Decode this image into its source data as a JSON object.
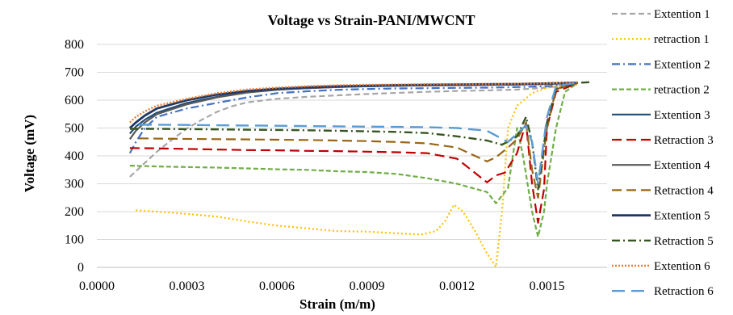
{
  "chart_data": {
    "type": "line",
    "title": "Voltage vs Strain-PANI/MWCNT",
    "xlabel": "Strain (m/m)",
    "ylabel": "Voltage  (mV)",
    "xlim": [
      0.0,
      0.0017
    ],
    "ylim": [
      0,
      800
    ],
    "xticks": [
      "0.0000",
      "0.0003",
      "0.0006",
      "0.0009",
      "0.0012",
      "0.0015"
    ],
    "yticks": [
      "0",
      "100",
      "200",
      "300",
      "400",
      "500",
      "600",
      "700",
      "800"
    ],
    "grid": "horizontal",
    "legend_position": "right",
    "series": [
      {
        "name": "Extention 1",
        "color": "#a6a6a6",
        "dash": "7,4",
        "width": 2.2,
        "points": [
          [
            0.00011,
            325
          ],
          [
            0.00013,
            345
          ],
          [
            0.00016,
            375
          ],
          [
            0.0002,
            415
          ],
          [
            0.00025,
            458
          ],
          [
            0.0003,
            498
          ],
          [
            0.00035,
            530
          ],
          [
            0.0004,
            558
          ],
          [
            0.00045,
            578
          ],
          [
            0.0005,
            592
          ],
          [
            0.0006,
            605
          ],
          [
            0.0007,
            612
          ],
          [
            0.0008,
            617
          ],
          [
            0.0009,
            622
          ],
          [
            0.001,
            626
          ],
          [
            0.0011,
            630
          ],
          [
            0.0012,
            633
          ],
          [
            0.0013,
            635
          ],
          [
            0.0014,
            638
          ],
          [
            0.0015,
            645
          ],
          [
            0.0016,
            660
          ]
        ]
      },
      {
        "name": "retraction 1",
        "color": "#ffc000",
        "dash": "2,3",
        "width": 2.2,
        "points": [
          [
            0.00013,
            205
          ],
          [
            0.0002,
            200
          ],
          [
            0.0003,
            192
          ],
          [
            0.0004,
            182
          ],
          [
            0.0005,
            165
          ],
          [
            0.0006,
            150
          ],
          [
            0.0007,
            140
          ],
          [
            0.0008,
            130
          ],
          [
            0.0009,
            128
          ],
          [
            0.001,
            122
          ],
          [
            0.00108,
            118
          ],
          [
            0.00113,
            130
          ],
          [
            0.00116,
            165
          ],
          [
            0.00119,
            225
          ],
          [
            0.00122,
            200
          ],
          [
            0.00126,
            130
          ],
          [
            0.0013,
            50
          ],
          [
            0.00133,
            2
          ],
          [
            0.00135,
            200
          ],
          [
            0.00137,
            500
          ],
          [
            0.0014,
            580
          ],
          [
            0.00145,
            625
          ],
          [
            0.0015,
            645
          ],
          [
            0.0016,
            655
          ]
        ]
      },
      {
        "name": "Extention 2",
        "color": "#4472c4",
        "dash": "10,4,2,4",
        "width": 2.2,
        "points": [
          [
            0.00011,
            410
          ],
          [
            0.00013,
            450
          ],
          [
            0.00016,
            500
          ],
          [
            0.0002,
            540
          ],
          [
            0.0003,
            570
          ],
          [
            0.0004,
            590
          ],
          [
            0.0005,
            610
          ],
          [
            0.0006,
            625
          ],
          [
            0.0007,
            632
          ],
          [
            0.0008,
            637
          ],
          [
            0.0009,
            640
          ],
          [
            0.001,
            642
          ],
          [
            0.0011,
            643
          ],
          [
            0.0012,
            644
          ],
          [
            0.0013,
            645
          ],
          [
            0.0014,
            647
          ],
          [
            0.0015,
            650
          ],
          [
            0.0016,
            660
          ]
        ]
      },
      {
        "name": "retraction 2",
        "color": "#70ad47",
        "dash": "6,3",
        "width": 2.2,
        "points": [
          [
            0.00011,
            365
          ],
          [
            0.0002,
            362
          ],
          [
            0.0003,
            360
          ],
          [
            0.0004,
            358
          ],
          [
            0.0005,
            355
          ],
          [
            0.0006,
            352
          ],
          [
            0.0007,
            350
          ],
          [
            0.0008,
            345
          ],
          [
            0.0009,
            342
          ],
          [
            0.001,
            335
          ],
          [
            0.0011,
            320
          ],
          [
            0.0012,
            300
          ],
          [
            0.0013,
            270
          ],
          [
            0.00133,
            230
          ],
          [
            0.00137,
            285
          ],
          [
            0.0014,
            500
          ],
          [
            0.00142,
            400
          ],
          [
            0.00145,
            200
          ],
          [
            0.00147,
            110
          ],
          [
            0.00149,
            200
          ],
          [
            0.0015,
            300
          ],
          [
            0.00153,
            500
          ],
          [
            0.00156,
            630
          ],
          [
            0.0016,
            660
          ]
        ]
      },
      {
        "name": "Extention 3",
        "color": "#1f4e79",
        "dash": "",
        "width": 2.2,
        "points": [
          [
            0.00011,
            480
          ],
          [
            0.00013,
            505
          ],
          [
            0.00016,
            530
          ],
          [
            0.0002,
            555
          ],
          [
            0.0003,
            590
          ],
          [
            0.0004,
            612
          ],
          [
            0.0005,
            628
          ],
          [
            0.0006,
            638
          ],
          [
            0.0007,
            643
          ],
          [
            0.0008,
            647
          ],
          [
            0.0009,
            650
          ],
          [
            0.001,
            652
          ],
          [
            0.0011,
            653
          ],
          [
            0.0012,
            654
          ],
          [
            0.0013,
            655
          ],
          [
            0.0014,
            656
          ],
          [
            0.0015,
            658
          ],
          [
            0.0016,
            662
          ]
        ]
      },
      {
        "name": "Retraction 3",
        "color": "#c00000",
        "dash": "12,6",
        "width": 2.2,
        "points": [
          [
            0.00011,
            428
          ],
          [
            0.0002,
            427
          ],
          [
            0.0003,
            425
          ],
          [
            0.0004,
            423
          ],
          [
            0.0005,
            421
          ],
          [
            0.0006,
            420
          ],
          [
            0.0007,
            418
          ],
          [
            0.0008,
            417
          ],
          [
            0.0009,
            415
          ],
          [
            0.001,
            413
          ],
          [
            0.0011,
            410
          ],
          [
            0.0012,
            390
          ],
          [
            0.0013,
            305
          ],
          [
            0.00133,
            330
          ],
          [
            0.00136,
            340
          ],
          [
            0.0014,
            410
          ],
          [
            0.00143,
            520
          ],
          [
            0.00145,
            300
          ],
          [
            0.00147,
            160
          ],
          [
            0.00149,
            280
          ],
          [
            0.0015,
            500
          ],
          [
            0.00153,
            630
          ],
          [
            0.0016,
            660
          ]
        ]
      },
      {
        "name": "Extention 4",
        "color": "#595959",
        "dash": "",
        "width": 2.2,
        "points": [
          [
            0.00011,
            460
          ],
          [
            0.00013,
            490
          ],
          [
            0.00016,
            520
          ],
          [
            0.0002,
            550
          ],
          [
            0.0003,
            585
          ],
          [
            0.0004,
            610
          ],
          [
            0.0005,
            627
          ],
          [
            0.0006,
            637
          ],
          [
            0.0007,
            643
          ],
          [
            0.0008,
            647
          ],
          [
            0.0009,
            650
          ],
          [
            0.001,
            652
          ],
          [
            0.0011,
            653
          ],
          [
            0.0012,
            654
          ],
          [
            0.0013,
            655
          ],
          [
            0.0014,
            656
          ],
          [
            0.0015,
            658
          ],
          [
            0.0016,
            662
          ]
        ]
      },
      {
        "name": "Retraction 4",
        "color": "#996515",
        "dash": "12,6",
        "width": 2.2,
        "points": [
          [
            0.00014,
            463
          ],
          [
            0.0002,
            462
          ],
          [
            0.0003,
            461
          ],
          [
            0.0004,
            460
          ],
          [
            0.0005,
            459
          ],
          [
            0.0006,
            458
          ],
          [
            0.0007,
            457
          ],
          [
            0.0008,
            455
          ],
          [
            0.0009,
            453
          ],
          [
            0.001,
            450
          ],
          [
            0.0011,
            445
          ],
          [
            0.0012,
            430
          ],
          [
            0.0013,
            380
          ],
          [
            0.00133,
            395
          ],
          [
            0.00137,
            430
          ],
          [
            0.0014,
            460
          ],
          [
            0.00143,
            520
          ],
          [
            0.00145,
            350
          ],
          [
            0.00147,
            250
          ],
          [
            0.0015,
            500
          ],
          [
            0.00153,
            640
          ],
          [
            0.0016,
            660
          ]
        ]
      },
      {
        "name": "Extention 5",
        "color": "#203864",
        "dash": "",
        "width": 2.8,
        "points": [
          [
            0.00011,
            500
          ],
          [
            0.00013,
            520
          ],
          [
            0.00016,
            545
          ],
          [
            0.0002,
            570
          ],
          [
            0.0003,
            600
          ],
          [
            0.0004,
            620
          ],
          [
            0.0005,
            633
          ],
          [
            0.0006,
            641
          ],
          [
            0.0007,
            646
          ],
          [
            0.0008,
            650
          ],
          [
            0.0009,
            652
          ],
          [
            0.001,
            654
          ],
          [
            0.0011,
            655
          ],
          [
            0.0012,
            656
          ],
          [
            0.0013,
            657
          ],
          [
            0.0014,
            658
          ],
          [
            0.0015,
            660
          ],
          [
            0.0016,
            663
          ]
        ]
      },
      {
        "name": "Retraction 5",
        "color": "#375623",
        "dash": "10,4,2,4",
        "width": 2.4,
        "points": [
          [
            0.00011,
            497
          ],
          [
            0.0002,
            497
          ],
          [
            0.0003,
            496
          ],
          [
            0.0004,
            495
          ],
          [
            0.0005,
            494
          ],
          [
            0.0006,
            493
          ],
          [
            0.0007,
            492
          ],
          [
            0.0008,
            490
          ],
          [
            0.0009,
            488
          ],
          [
            0.001,
            486
          ],
          [
            0.0011,
            482
          ],
          [
            0.0012,
            470
          ],
          [
            0.0013,
            455
          ],
          [
            0.00135,
            440
          ],
          [
            0.0014,
            470
          ],
          [
            0.00143,
            540
          ],
          [
            0.00145,
            450
          ],
          [
            0.00147,
            280
          ],
          [
            0.0015,
            520
          ],
          [
            0.00153,
            640
          ],
          [
            0.0016,
            662
          ],
          [
            0.00165,
            665
          ]
        ]
      },
      {
        "name": "Extention 6",
        "color": "#ed7d31",
        "dash": "2,2",
        "width": 2.4,
        "points": [
          [
            0.00011,
            520
          ],
          [
            0.00013,
            540
          ],
          [
            0.00016,
            560
          ],
          [
            0.0002,
            580
          ],
          [
            0.0003,
            605
          ],
          [
            0.0004,
            625
          ],
          [
            0.0005,
            638
          ],
          [
            0.0006,
            645
          ],
          [
            0.0007,
            650
          ],
          [
            0.0008,
            653
          ],
          [
            0.0009,
            655
          ],
          [
            0.001,
            656
          ],
          [
            0.0011,
            657
          ],
          [
            0.0012,
            658
          ],
          [
            0.0013,
            658
          ],
          [
            0.0014,
            659
          ],
          [
            0.0015,
            660
          ],
          [
            0.0016,
            664
          ]
        ]
      },
      {
        "name": "Retraction 6",
        "color": "#5b9bd5",
        "dash": "16,8",
        "width": 2.4,
        "points": [
          [
            0.00014,
            512
          ],
          [
            0.0002,
            512
          ],
          [
            0.0003,
            511
          ],
          [
            0.0004,
            510
          ],
          [
            0.0005,
            509
          ],
          [
            0.0006,
            508
          ],
          [
            0.0007,
            507
          ],
          [
            0.0008,
            506
          ],
          [
            0.0009,
            505
          ],
          [
            0.001,
            504
          ],
          [
            0.0011,
            503
          ],
          [
            0.0012,
            500
          ],
          [
            0.0013,
            490
          ],
          [
            0.00137,
            450
          ],
          [
            0.0014,
            480
          ],
          [
            0.00143,
            510
          ],
          [
            0.00145,
            450
          ],
          [
            0.00147,
            300
          ],
          [
            0.0015,
            540
          ],
          [
            0.00153,
            650
          ],
          [
            0.0016,
            663
          ]
        ]
      }
    ]
  }
}
